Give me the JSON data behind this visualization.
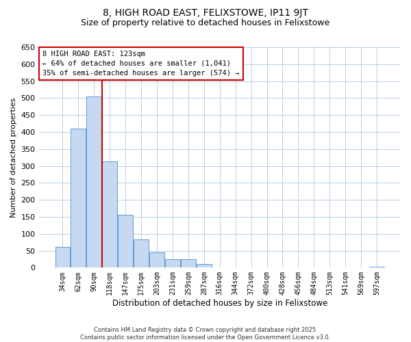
{
  "title": "8, HIGH ROAD EAST, FELIXSTOWE, IP11 9JT",
  "subtitle": "Size of property relative to detached houses in Felixstowe",
  "xlabel": "Distribution of detached houses by size in Felixstowe",
  "ylabel": "Number of detached properties",
  "bar_labels": [
    "34sqm",
    "62sqm",
    "90sqm",
    "118sqm",
    "147sqm",
    "175sqm",
    "203sqm",
    "231sqm",
    "259sqm",
    "287sqm",
    "316sqm",
    "344sqm",
    "372sqm",
    "400sqm",
    "428sqm",
    "456sqm",
    "484sqm",
    "513sqm",
    "541sqm",
    "569sqm",
    "597sqm"
  ],
  "bar_values": [
    62,
    410,
    505,
    313,
    155,
    84,
    46,
    25,
    25,
    10,
    0,
    0,
    0,
    0,
    0,
    0,
    0,
    0,
    0,
    0,
    2
  ],
  "bar_color": "#c6d9f0",
  "bar_edge_color": "#5b9bd5",
  "ylim": [
    0,
    650
  ],
  "yticks": [
    0,
    50,
    100,
    150,
    200,
    250,
    300,
    350,
    400,
    450,
    500,
    550,
    600,
    650
  ],
  "vline_x_index": 2.5,
  "vline_color": "#cc0000",
  "annotation_title": "8 HIGH ROAD EAST: 123sqm",
  "annotation_line1": "← 64% of detached houses are smaller (1,041)",
  "annotation_line2": "35% of semi-detached houses are larger (574) →",
  "annotation_box_color": "#ffffff",
  "annotation_box_edge": "#cc0000",
  "footer_line1": "Contains HM Land Registry data © Crown copyright and database right 2025.",
  "footer_line2": "Contains public sector information licensed under the Open Government Licence v3.0.",
  "background_color": "#ffffff",
  "grid_color": "#b8cce4"
}
